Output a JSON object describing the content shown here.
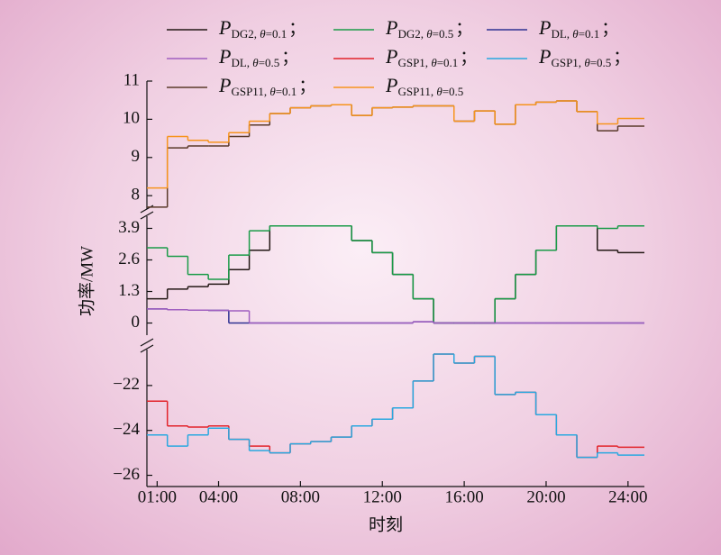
{
  "chart_data": {
    "type": "line",
    "step": true,
    "xlabel": "时刻",
    "ylabel": "功率/MW",
    "legend_separator": "；",
    "x": [
      1,
      2,
      3,
      4,
      5,
      6,
      7,
      8,
      9,
      10,
      11,
      12,
      13,
      14,
      15,
      16,
      17,
      18,
      19,
      20,
      21,
      22,
      23,
      24
    ],
    "xlim": [
      0.5,
      24.8
    ],
    "xticks": [
      {
        "value": 1,
        "label": "01:00"
      },
      {
        "value": 4,
        "label": "04:00"
      },
      {
        "value": 8,
        "label": "08:00"
      },
      {
        "value": 12,
        "label": "12:00"
      },
      {
        "value": 16,
        "label": "16:00"
      },
      {
        "value": 20,
        "label": "20:00"
      },
      {
        "value": 24,
        "label": "24:00"
      }
    ],
    "panels": [
      {
        "ylim": [
          7.65,
          11
        ],
        "yticks": [
          8,
          9,
          10,
          11
        ]
      },
      {
        "ylim": [
          -0.5,
          4.4
        ],
        "yticks": [
          0,
          1.3,
          2.6,
          3.9
        ]
      },
      {
        "ylim": [
          -26.5,
          -20.4
        ],
        "yticks": [
          {
            "value": -26,
            "label": "−26"
          },
          {
            "value": -24,
            "label": "−24"
          },
          {
            "value": -22,
            "label": "−22"
          }
        ]
      }
    ],
    "series": [
      {
        "name": "PDG2, θ=0.1",
        "color": "#231815",
        "panel": 1,
        "values": [
          1.0,
          1.4,
          1.5,
          1.6,
          2.2,
          3.0,
          4.0,
          4.0,
          4.0,
          4.0,
          3.4,
          2.9,
          2.0,
          1.0,
          0,
          0,
          0,
          1.0,
          2.0,
          3.0,
          4.0,
          4.0,
          3.0,
          2.9
        ]
      },
      {
        "name": "PDG2, θ=0.5",
        "color": "#1a9b48",
        "panel": 1,
        "values": [
          3.1,
          2.75,
          2.0,
          1.8,
          2.8,
          3.8,
          4.0,
          4.0,
          4.0,
          4.0,
          3.4,
          2.9,
          2.0,
          1.0,
          0,
          0,
          0,
          1.0,
          2.0,
          3.0,
          4.0,
          4.0,
          3.9,
          4.0
        ]
      },
      {
        "name": "PDL, θ=0.1",
        "color": "#2e3192",
        "panel": 1,
        "values": [
          0.58,
          0.55,
          0.53,
          0.52,
          0,
          0,
          0,
          0,
          0,
          0,
          0,
          0,
          0,
          0.05,
          0,
          0,
          0,
          0,
          0,
          0,
          0,
          0,
          0,
          0
        ]
      },
      {
        "name": "PDL, θ=0.5",
        "color": "#a05fc0",
        "panel": 1,
        "values": [
          0.58,
          0.55,
          0.53,
          0.52,
          0.5,
          0,
          0,
          0,
          0,
          0,
          0,
          0,
          0,
          0.05,
          0,
          0,
          0,
          0,
          0,
          0,
          0,
          0,
          0,
          0
        ]
      },
      {
        "name": "PGSP1, θ=0.1",
        "color": "#e2232a",
        "panel": 2,
        "values": [
          -22.7,
          -23.8,
          -23.85,
          -23.8,
          -24.4,
          -24.7,
          -25.0,
          -24.6,
          -24.5,
          -24.3,
          -23.8,
          -23.5,
          -23.0,
          -21.8,
          -20.6,
          -21.0,
          -20.7,
          -22.4,
          -22.3,
          -23.3,
          -24.2,
          -25.2,
          -24.7,
          -24.75
        ]
      },
      {
        "name": "PGSP1, θ=0.5",
        "color": "#29a8e0",
        "panel": 2,
        "values": [
          -24.2,
          -24.7,
          -24.2,
          -23.9,
          -24.4,
          -24.9,
          -25.0,
          -24.6,
          -24.5,
          -24.3,
          -23.8,
          -23.5,
          -23.0,
          -21.8,
          -20.6,
          -21.0,
          -20.7,
          -22.4,
          -22.3,
          -23.3,
          -24.2,
          -25.2,
          -25.0,
          -25.1
        ]
      },
      {
        "name": "PGSP11, θ=0.1",
        "color": "#5a3a2a",
        "panel": 0,
        "values": [
          7.7,
          9.25,
          9.3,
          9.3,
          9.55,
          9.85,
          10.15,
          10.3,
          10.35,
          10.38,
          10.1,
          10.3,
          10.32,
          10.35,
          10.35,
          9.95,
          10.22,
          9.87,
          10.38,
          10.45,
          10.48,
          10.2,
          9.7,
          9.82
        ]
      },
      {
        "name": "PGSP11, θ=0.5",
        "color": "#f7941d",
        "panel": 0,
        "values": [
          8.2,
          9.55,
          9.45,
          9.4,
          9.65,
          9.95,
          10.15,
          10.3,
          10.35,
          10.38,
          10.1,
          10.3,
          10.32,
          10.35,
          10.35,
          9.95,
          10.22,
          9.87,
          10.38,
          10.45,
          10.48,
          10.2,
          9.88,
          10.02
        ]
      }
    ]
  }
}
